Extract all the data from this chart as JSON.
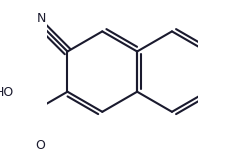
{
  "bg_color": "#ffffff",
  "bond_color": "#1a1a2e",
  "bond_lw": 1.5,
  "dbo": 0.038,
  "font_size": 9,
  "text_color": "#1a1a2e",
  "r": 0.38,
  "ox": 0.52,
  "oy": 0.05,
  "cn_label": "N",
  "ho_label": "HO",
  "o_label": "O"
}
